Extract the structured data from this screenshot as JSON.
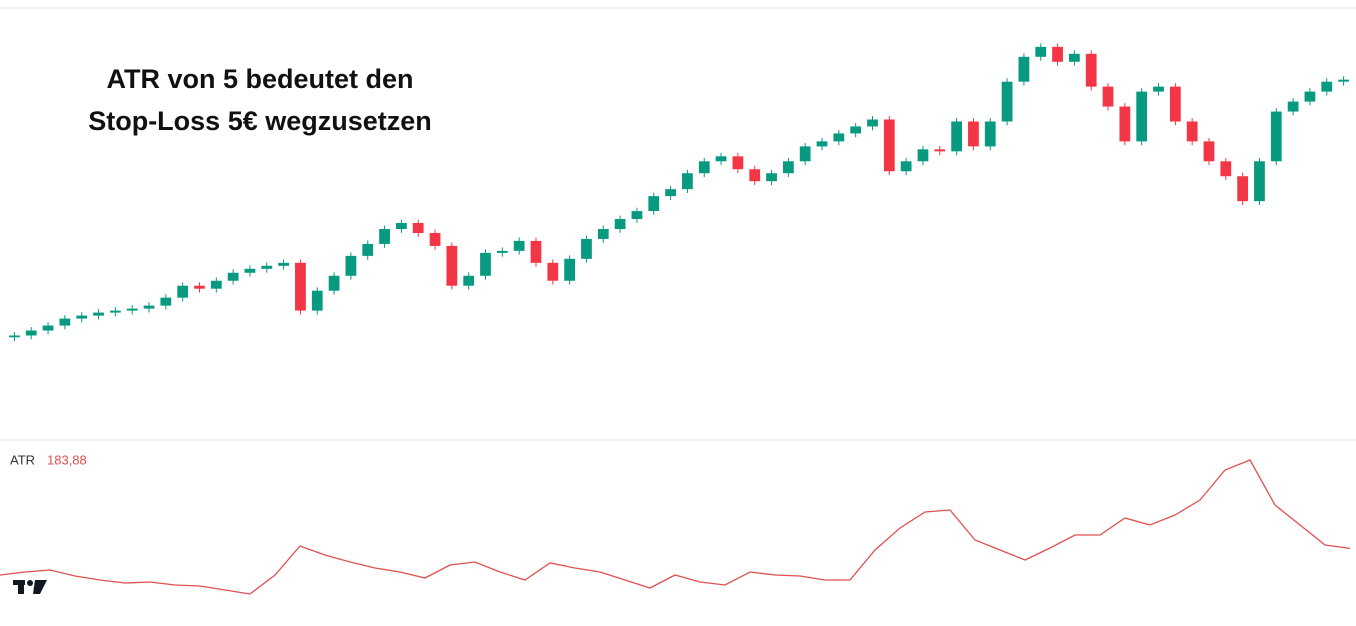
{
  "chart_data": [
    {
      "type": "candlestick",
      "annotation": [
        "ATR von 5 bedeutet den",
        "Stop-Loss 5€ wegzusetzen"
      ],
      "open": [
        14900,
        14942,
        15058,
        15174,
        15337,
        15407,
        15477,
        15523,
        15570,
        15640,
        15826,
        16105,
        16035,
        16221,
        16407,
        16500,
        16570,
        16640,
        15523,
        15988,
        16337,
        16802,
        17081,
        17430,
        17570,
        17337,
        17035,
        16105,
        16337,
        16872,
        16919,
        17151,
        16640,
        16221,
        16733,
        17198,
        17430,
        17663,
        17849,
        18198,
        18360,
        18733,
        19012,
        19128,
        18826,
        18547,
        18733,
        19012,
        19360,
        19477,
        19663,
        19826,
        19988,
        18779,
        19012,
        19291,
        19244,
        19942,
        19360,
        19942,
        20872,
        21453,
        21686,
        21337,
        21523,
        20756,
        20291,
        19477,
        20640,
        20756,
        19942,
        19477,
        19012,
        18663,
        18081,
        19012,
        20174,
        20407,
        20640,
        20872
      ],
      "high": [
        15022,
        15138,
        15254,
        15417,
        15487,
        15557,
        15603,
        15650,
        15720,
        15906,
        16185,
        16185,
        16301,
        16487,
        16580,
        16650,
        16720,
        16720,
        16068,
        16417,
        16882,
        17161,
        17510,
        17650,
        17650,
        17417,
        17115,
        16417,
        16952,
        16999,
        17231,
        17231,
        16720,
        16813,
        17278,
        17510,
        17743,
        17929,
        18278,
        18440,
        18813,
        19092,
        19208,
        19208,
        18906,
        18813,
        19092,
        19440,
        19557,
        19743,
        19906,
        20068,
        20068,
        19092,
        19371,
        19371,
        20022,
        20022,
        20022,
        20952,
        21533,
        21766,
        21766,
        21603,
        21603,
        20836,
        20371,
        20720,
        20836,
        20836,
        20022,
        19557,
        19092,
        18743,
        19092,
        20254,
        20487,
        20720,
        20952,
        20999
      ],
      "low": [
        14810,
        14852,
        14968,
        15084,
        15247,
        15317,
        15387,
        15433,
        15480,
        15550,
        15736,
        15945,
        15945,
        16131,
        16317,
        16410,
        16480,
        15433,
        15433,
        15898,
        16247,
        16712,
        16991,
        17340,
        17247,
        16945,
        16015,
        16015,
        16247,
        16782,
        16829,
        16550,
        16131,
        16131,
        16643,
        17108,
        17340,
        17573,
        17759,
        18108,
        18270,
        18643,
        18922,
        18736,
        18457,
        18457,
        18643,
        18922,
        19270,
        19387,
        19573,
        19736,
        18689,
        18689,
        18922,
        19154,
        19154,
        19270,
        19270,
        19852,
        20782,
        21363,
        21247,
        21247,
        20666,
        20201,
        19387,
        19387,
        20550,
        19852,
        19387,
        18922,
        18573,
        17991,
        17991,
        18922,
        20084,
        20317,
        20550,
        20782
      ],
      "close": [
        14942,
        15058,
        15174,
        15337,
        15407,
        15477,
        15523,
        15570,
        15640,
        15826,
        16105,
        16035,
        16221,
        16407,
        16500,
        16570,
        16640,
        15523,
        15988,
        16337,
        16802,
        17081,
        17430,
        17570,
        17337,
        17035,
        16105,
        16337,
        16872,
        16919,
        17151,
        16640,
        16221,
        16733,
        17198,
        17430,
        17663,
        17849,
        18198,
        18360,
        18733,
        19012,
        19128,
        18826,
        18547,
        18733,
        19012,
        19360,
        19477,
        19663,
        19826,
        19988,
        18779,
        19012,
        19291,
        19244,
        19942,
        19360,
        19942,
        20872,
        21453,
        21686,
        21337,
        21523,
        20756,
        20291,
        19477,
        20640,
        20756,
        19942,
        19477,
        19012,
        18663,
        18081,
        19012,
        20174,
        20407,
        20640,
        20872,
        20919
      ],
      "up_color": "#089981",
      "down_color": "#f23645",
      "ylim": [
        12500,
        22500
      ]
    },
    {
      "type": "line",
      "label": "ATR",
      "last_value_label": "183,88",
      "values": [
        120,
        127.2,
        132,
        117.6,
        108,
        100.8,
        103.2,
        96,
        93.6,
        84,
        74.4,
        120,
        189.6,
        168,
        151.2,
        136.8,
        127.2,
        112.8,
        144,
        151.2,
        127.2,
        108,
        148.8,
        136.8,
        127.2,
        108,
        88.8,
        120,
        103.2,
        96,
        127.2,
        120,
        117.6,
        108,
        108,
        180,
        232.8,
        271.2,
        276,
        204,
        180,
        156,
        184.8,
        216,
        216,
        256.8,
        240,
        264,
        300,
        372,
        396,
        288,
        240,
        192,
        183.88
      ],
      "color": "#e0504f",
      "ylim": [
        60,
        420
      ]
    }
  ]
}
